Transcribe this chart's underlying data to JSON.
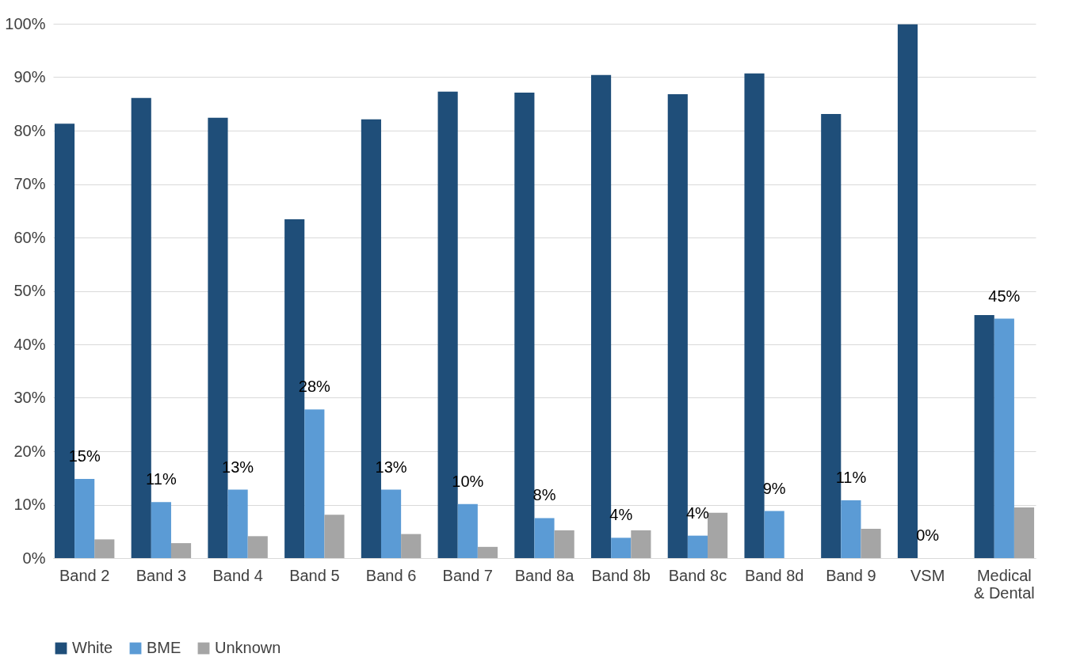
{
  "chart_data": {
    "type": "bar",
    "categories": [
      "Band 2",
      "Band 3",
      "Band 4",
      "Band 5",
      "Band 6",
      "Band 7",
      "Band 8a",
      "Band 8b",
      "Band 8c",
      "Band 8d",
      "Band 9",
      "VSM",
      "Medical & Dental"
    ],
    "series": [
      {
        "name": "White",
        "color": "#1f4e79",
        "values": [
          81.3,
          86.1,
          82.4,
          63.4,
          82.1,
          87.3,
          87.1,
          90.4,
          86.8,
          90.7,
          83.1,
          99.9,
          45.5
        ]
      },
      {
        "name": "BME",
        "color": "#5b9bd5",
        "values": [
          14.8,
          10.5,
          12.8,
          27.8,
          12.8,
          10.1,
          7.5,
          3.8,
          4.2,
          8.8,
          10.8,
          0,
          44.8
        ],
        "value_labels": [
          "15%",
          "11%",
          "13%",
          "28%",
          "13%",
          "10%",
          "8%",
          "4%",
          "4%",
          "9%",
          "11%",
          "0%",
          "45%"
        ]
      },
      {
        "name": "Unknown",
        "color": "#a5a5a5",
        "values": [
          3.5,
          2.8,
          4.1,
          8.1,
          4.5,
          2.1,
          5.2,
          5.2,
          8.5,
          0,
          5.5,
          0,
          9.5
        ]
      }
    ],
    "ylim": [
      0,
      100
    ],
    "yticks": [
      {
        "value": 0,
        "label": "0%"
      },
      {
        "value": 10,
        "label": "10%"
      },
      {
        "value": 20,
        "label": "20%"
      },
      {
        "value": 30,
        "label": "30%"
      },
      {
        "value": 40,
        "label": "40%"
      },
      {
        "value": 50,
        "label": "50%"
      },
      {
        "value": 60,
        "label": "60%"
      },
      {
        "value": 70,
        "label": "70%"
      },
      {
        "value": 80,
        "label": "80%"
      },
      {
        "value": 90,
        "label": "90%"
      },
      {
        "value": 100,
        "label": "100%"
      }
    ],
    "grid": "y",
    "legend": "bottom"
  }
}
